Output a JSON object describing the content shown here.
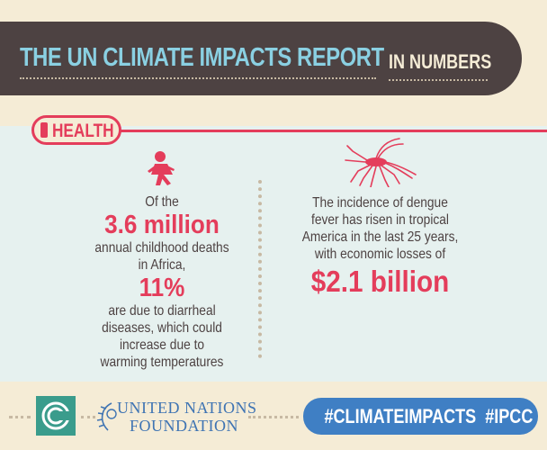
{
  "header": {
    "title": "THE UN CLIMATE IMPACTS REPORT",
    "subtitle": "IN NUMBERS"
  },
  "section": {
    "label": "HEALTH"
  },
  "left_stat": {
    "line1": "Of the",
    "highlight1": "3.6 million",
    "line2": "annual childhood deaths",
    "line3": "in Africa,",
    "highlight2": "11%",
    "line4": "are due to diarrheal",
    "line5": "diseases, which could",
    "line6": "increase due to",
    "line7": "warming temperatures"
  },
  "right_stat": {
    "line1": "The incidence of dengue",
    "line2": "fever has risen in tropical",
    "line3": "America in the last 25 years,",
    "line4": "with economic losses of",
    "highlight": "$2.1 billion"
  },
  "footer": {
    "org_line1": "UNITED NATIONS",
    "org_line2": "FOUNDATION",
    "hashtags": "#CLIMATEIMPACTS  #IPCC"
  },
  "icons": {
    "child": "running-child-icon",
    "mosquito": "mosquito-icon",
    "logo": "climate-logo-icon",
    "laurel": "un-laurel-icon"
  },
  "colors": {
    "background": "#f5ecd6",
    "header": "#4d4242",
    "accent_red": "#e43d5b",
    "title_blue": "#8ad0e2",
    "panel": "#e6f1ef",
    "hashtag_blue": "#3f7fc4",
    "logo_teal": "#3a9c8c"
  }
}
